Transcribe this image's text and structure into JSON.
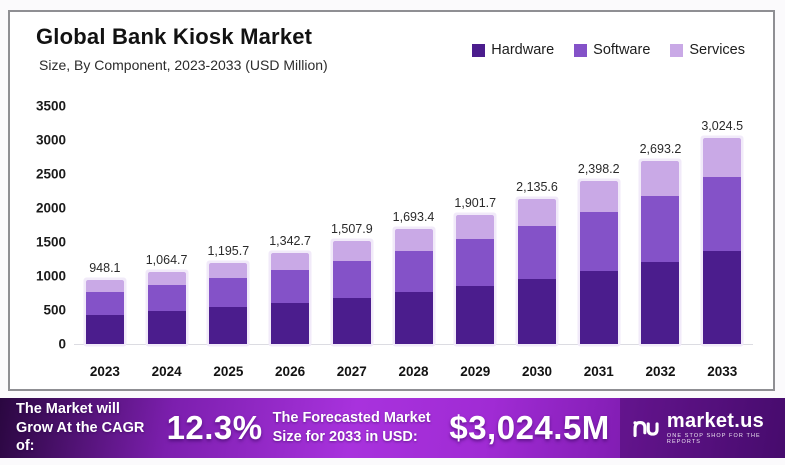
{
  "header": {
    "title": "Global Bank Kiosk Market",
    "subtitle": "Size, By Component, 2023-2033 (USD Million)"
  },
  "legend": [
    {
      "label": "Hardware",
      "color": "#4b1d8d"
    },
    {
      "label": "Software",
      "color": "#8452c8"
    },
    {
      "label": "Services",
      "color": "#c9a9e6"
    }
  ],
  "chart_data": {
    "type": "bar",
    "stacked": true,
    "title": "Global Bank Kiosk Market",
    "subtitle": "Size, By Component, 2023-2033 (USD Million)",
    "xlabel": "",
    "ylabel": "USD Million",
    "ylim": [
      0,
      3500
    ],
    "yticks": [
      0,
      500,
      1000,
      1500,
      2000,
      2500,
      3000,
      3500
    ],
    "grid": false,
    "legend_position": "top-right",
    "categories": [
      "2023",
      "2024",
      "2025",
      "2026",
      "2027",
      "2028",
      "2029",
      "2030",
      "2031",
      "2032",
      "2033"
    ],
    "series": [
      {
        "name": "Hardware",
        "color": "#4b1d8d",
        "values": [
          426.6,
          479.1,
          538.1,
          604.2,
          678.6,
          762.0,
          855.8,
          961.0,
          1079.2,
          1211.9,
          1361.0
        ]
      },
      {
        "name": "Software",
        "color": "#8452c8",
        "values": [
          341.3,
          383.3,
          430.5,
          483.4,
          542.8,
          609.6,
          684.6,
          768.8,
          863.4,
          969.6,
          1088.8
        ]
      },
      {
        "name": "Services",
        "color": "#c9a9e6",
        "values": [
          180.2,
          202.3,
          227.1,
          255.1,
          286.5,
          321.8,
          361.3,
          405.8,
          455.6,
          511.7,
          574.7
        ]
      }
    ],
    "totals": [
      948.1,
      1064.7,
      1195.7,
      1342.7,
      1507.9,
      1693.4,
      1901.7,
      2135.6,
      2398.2,
      2693.2,
      3024.5
    ],
    "total_labels": [
      "948.1",
      "1,064.7",
      "1,195.7",
      "1,342.7",
      "1,507.9",
      "1,693.4",
      "1,901.7",
      "2,135.6",
      "2,398.2",
      "2,693.2",
      "3,024.5"
    ],
    "note": "Per-component segment values estimated from bar proportions; totals are the printed data labels."
  },
  "banner": {
    "cagr_label": "The Market will Grow At the CAGR of:",
    "cagr_value": "12.3%",
    "forecast_label": "The Forecasted Market Size for 2033 in USD:",
    "forecast_value": "$3,024.5M",
    "logo_text": "market.us",
    "logo_tagline": "ONE STOP SHOP FOR THE REPORTS"
  }
}
